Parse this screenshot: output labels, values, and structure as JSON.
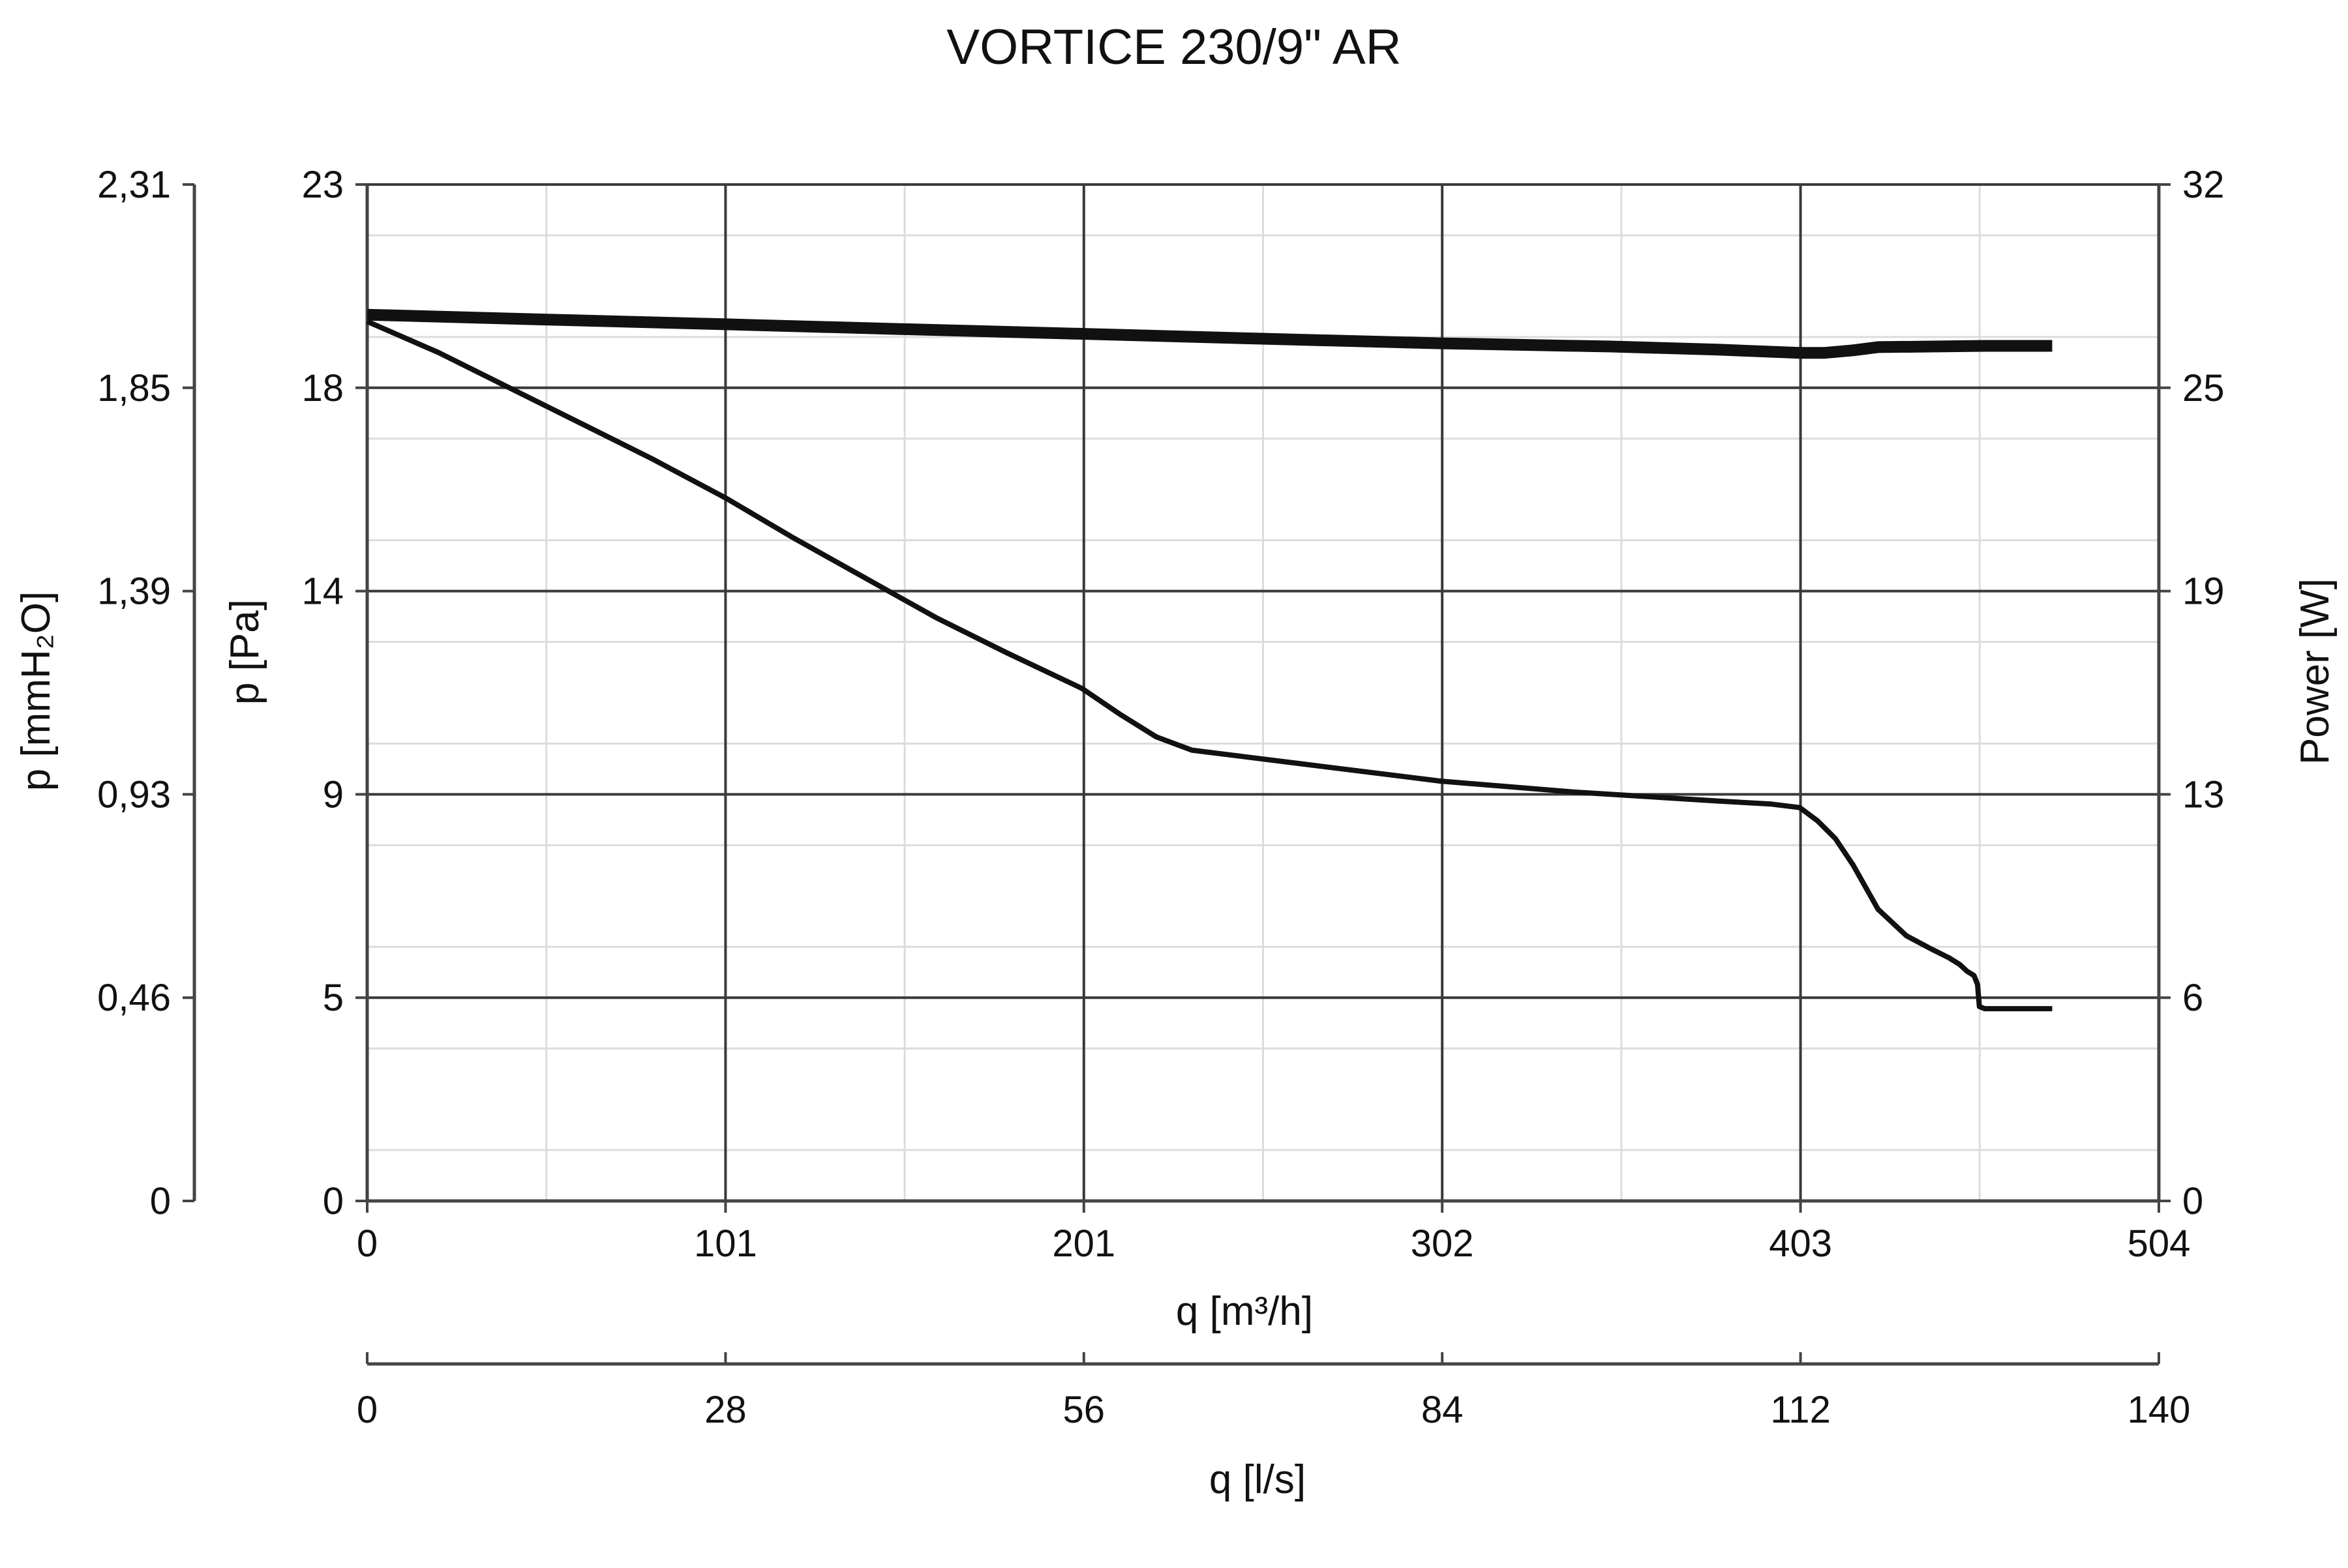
{
  "colors": {
    "background": "#ffffff",
    "curve": "#111111",
    "major_grid": "#3a3a3a",
    "minor_grid": "#dcdcdc",
    "axis": "#444444"
  },
  "chart_data": {
    "type": "line",
    "title": "VORTICE 230/9\" AR",
    "grid": true,
    "legend": "none",
    "x_axes": {
      "primary": {
        "label": "q [m³/h]",
        "range": [
          0,
          504
        ],
        "ticks": [
          "0",
          "101",
          "201",
          "302",
          "403",
          "504"
        ]
      },
      "secondary": {
        "label": "q [l/s]",
        "range": [
          0,
          140
        ],
        "ticks": [
          "0",
          "28",
          "56",
          "84",
          "112",
          "140"
        ]
      }
    },
    "y_axes": {
      "pressure_pa": {
        "label": "p [Pa]",
        "range": [
          0,
          23
        ],
        "ticks": [
          "0",
          "5",
          "9",
          "14",
          "18",
          "23"
        ]
      },
      "pressure_mmh2o": {
        "label": "p [mmH₂O]",
        "range": [
          0,
          2.31
        ],
        "ticks": [
          "0",
          "0,46",
          "0,93",
          "1,39",
          "1,85",
          "2,31"
        ]
      },
      "power_w": {
        "label": "Power [W]",
        "range": [
          0,
          32
        ],
        "ticks": [
          "0",
          "6",
          "13",
          "19",
          "25",
          "32"
        ]
      }
    },
    "series": [
      {
        "axis": "pressure_pa",
        "stroke_weight": "thin",
        "x": [
          0,
          20,
          40,
          60,
          80,
          101,
          120,
          140,
          160,
          180,
          201,
          212,
          222,
          232,
          247,
          262,
          302,
          340,
          380,
          395,
          403,
          408,
          413,
          418,
          425,
          433,
          440,
          445,
          448,
          450,
          452,
          453,
          453.5,
          455,
          460,
          470,
          474
        ],
        "y": [
          19.9,
          19.2,
          18.4,
          17.6,
          16.8,
          15.9,
          15.0,
          14.1,
          13.2,
          12.4,
          11.6,
          11.0,
          10.5,
          10.2,
          10.05,
          9.9,
          9.5,
          9.25,
          9.05,
          8.98,
          8.9,
          8.6,
          8.2,
          7.6,
          6.6,
          6.0,
          5.7,
          5.5,
          5.35,
          5.2,
          5.1,
          4.9,
          4.4,
          4.35,
          4.35,
          4.35,
          4.35
        ]
      },
      {
        "axis": "power_w",
        "stroke_weight": "thick",
        "x": [
          0,
          50,
          101,
          150,
          201,
          250,
          302,
          350,
          380,
          403,
          410,
          418,
          425,
          440,
          455,
          474
        ],
        "y": [
          27.9,
          27.75,
          27.6,
          27.45,
          27.3,
          27.15,
          27.0,
          26.9,
          26.8,
          26.7,
          26.7,
          26.78,
          26.88,
          26.9,
          26.92,
          26.92
        ]
      }
    ]
  }
}
